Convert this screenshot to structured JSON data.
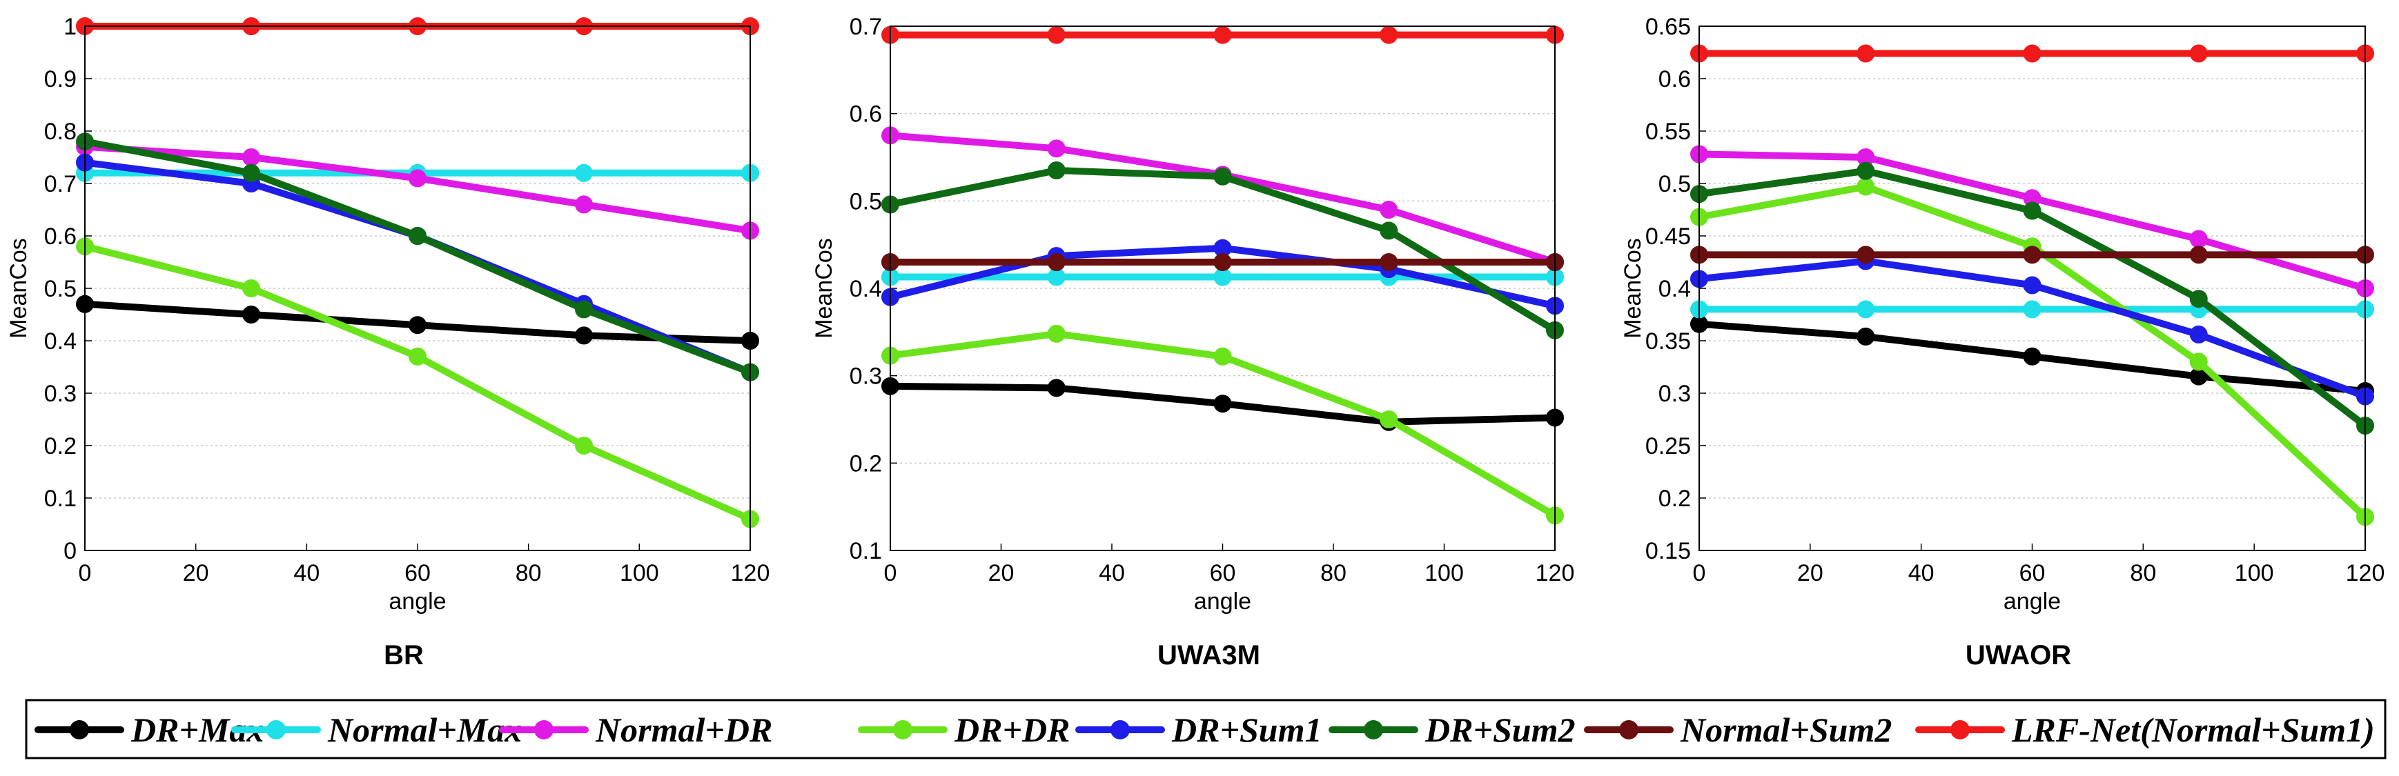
{
  "chart_data": [
    {
      "type": "line",
      "title": "BR",
      "xlabel": "angle",
      "ylabel": "MeanCos",
      "xlim": [
        0,
        120
      ],
      "ylim": [
        0,
        1
      ],
      "xticks": [
        "0",
        "20",
        "40",
        "60",
        "80",
        "100",
        "120"
      ],
      "yticks": [
        "0",
        "0.1",
        "0.2",
        "0.3",
        "0.4",
        "0.5",
        "0.6",
        "0.7",
        "0.8",
        "0.9",
        "1"
      ],
      "x": [
        0,
        30,
        60,
        90,
        120
      ],
      "series": [
        {
          "name": "DR+Max",
          "values": [
            0.47,
            0.45,
            0.43,
            0.41,
            0.4
          ]
        },
        {
          "name": "Normal+Max",
          "values": [
            0.72,
            0.72,
            0.72,
            0.72,
            0.72
          ]
        },
        {
          "name": "Normal+DR",
          "values": [
            0.77,
            0.75,
            0.71,
            0.66,
            0.61
          ]
        },
        {
          "name": "DR+DR",
          "values": [
            0.58,
            0.5,
            0.37,
            0.2,
            0.06
          ]
        },
        {
          "name": "DR+Sum1",
          "values": [
            0.74,
            0.7,
            0.6,
            0.47,
            0.34
          ]
        },
        {
          "name": "DR+Sum2",
          "values": [
            0.78,
            0.72,
            0.6,
            0.46,
            0.34
          ]
        },
        {
          "name": "LRF-Net(Normal+Sum1)",
          "values": [
            1.0,
            1.0,
            1.0,
            1.0,
            1.0
          ]
        }
      ]
    },
    {
      "type": "line",
      "title": "UWA3M",
      "xlabel": "angle",
      "ylabel": "MeanCos",
      "xlim": [
        0,
        120
      ],
      "ylim": [
        0.1,
        0.7
      ],
      "xticks": [
        "0",
        "20",
        "40",
        "60",
        "80",
        "100",
        "120"
      ],
      "yticks": [
        "0.1",
        "0.2",
        "0.3",
        "0.4",
        "0.5",
        "0.6",
        "0.7"
      ],
      "x": [
        0,
        30,
        60,
        90,
        120
      ],
      "series": [
        {
          "name": "DR+Max",
          "values": [
            0.288,
            0.286,
            0.268,
            0.247,
            0.252
          ]
        },
        {
          "name": "Normal+Max",
          "values": [
            0.413,
            0.413,
            0.413,
            0.413,
            0.413
          ]
        },
        {
          "name": "Normal+DR",
          "values": [
            0.575,
            0.56,
            0.53,
            0.49,
            0.43
          ]
        },
        {
          "name": "DR+DR",
          "values": [
            0.323,
            0.348,
            0.322,
            0.25,
            0.14
          ]
        },
        {
          "name": "DR+Sum1",
          "values": [
            0.39,
            0.437,
            0.446,
            0.422,
            0.38
          ]
        },
        {
          "name": "DR+Sum2",
          "values": [
            0.496,
            0.535,
            0.528,
            0.466,
            0.352
          ]
        },
        {
          "name": "Normal+Sum2",
          "values": [
            0.43,
            0.43,
            0.43,
            0.43,
            0.43
          ]
        },
        {
          "name": "LRF-Net(Normal+Sum1)",
          "values": [
            0.69,
            0.69,
            0.69,
            0.69,
            0.69
          ]
        }
      ]
    },
    {
      "type": "line",
      "title": "UWAOR",
      "xlabel": "angle",
      "ylabel": "MeanCos",
      "xlim": [
        0,
        120
      ],
      "ylim": [
        0.15,
        0.65
      ],
      "xticks": [
        "0",
        "20",
        "40",
        "60",
        "80",
        "100",
        "120"
      ],
      "yticks": [
        "0.15",
        "0.2",
        "0.25",
        "0.3",
        "0.35",
        "0.4",
        "0.45",
        "0.5",
        "0.55",
        "0.6",
        "0.65"
      ],
      "x": [
        0,
        30,
        60,
        90,
        120
      ],
      "series": [
        {
          "name": "DR+Max",
          "values": [
            0.366,
            0.354,
            0.335,
            0.316,
            0.302
          ]
        },
        {
          "name": "Normal+Max",
          "values": [
            0.38,
            0.38,
            0.38,
            0.38,
            0.38
          ]
        },
        {
          "name": "Normal+DR",
          "values": [
            0.528,
            0.525,
            0.486,
            0.447,
            0.4
          ]
        },
        {
          "name": "DR+DR",
          "values": [
            0.468,
            0.497,
            0.44,
            0.33,
            0.182
          ]
        },
        {
          "name": "DR+Sum1",
          "values": [
            0.409,
            0.426,
            0.403,
            0.356,
            0.297
          ]
        },
        {
          "name": "DR+Sum2",
          "values": [
            0.49,
            0.512,
            0.474,
            0.39,
            0.269
          ]
        },
        {
          "name": "Normal+Sum2",
          "values": [
            0.432,
            0.432,
            0.432,
            0.432,
            0.432
          ]
        },
        {
          "name": "LRF-Net(Normal+Sum1)",
          "values": [
            0.624,
            0.624,
            0.624,
            0.624,
            0.624
          ]
        }
      ]
    }
  ],
  "legend": {
    "placement": "bottom",
    "entries": [
      {
        "label": "DR+Max",
        "color": "#000000"
      },
      {
        "label": "Normal+Max",
        "color": "#1fe0e8"
      },
      {
        "label": "Normal+DR",
        "color": "#e01ae6"
      },
      {
        "label": "DR+DR",
        "color": "#6ae31a"
      },
      {
        "label": "DR+Sum1",
        "color": "#1e1ee8"
      },
      {
        "label": "DR+Sum2",
        "color": "#0f6a14"
      },
      {
        "label": "Normal+Sum2",
        "color": "#6a0f0f"
      },
      {
        "label": "LRF-Net(Normal+Sum1)",
        "color": "#f01a1a"
      }
    ]
  }
}
